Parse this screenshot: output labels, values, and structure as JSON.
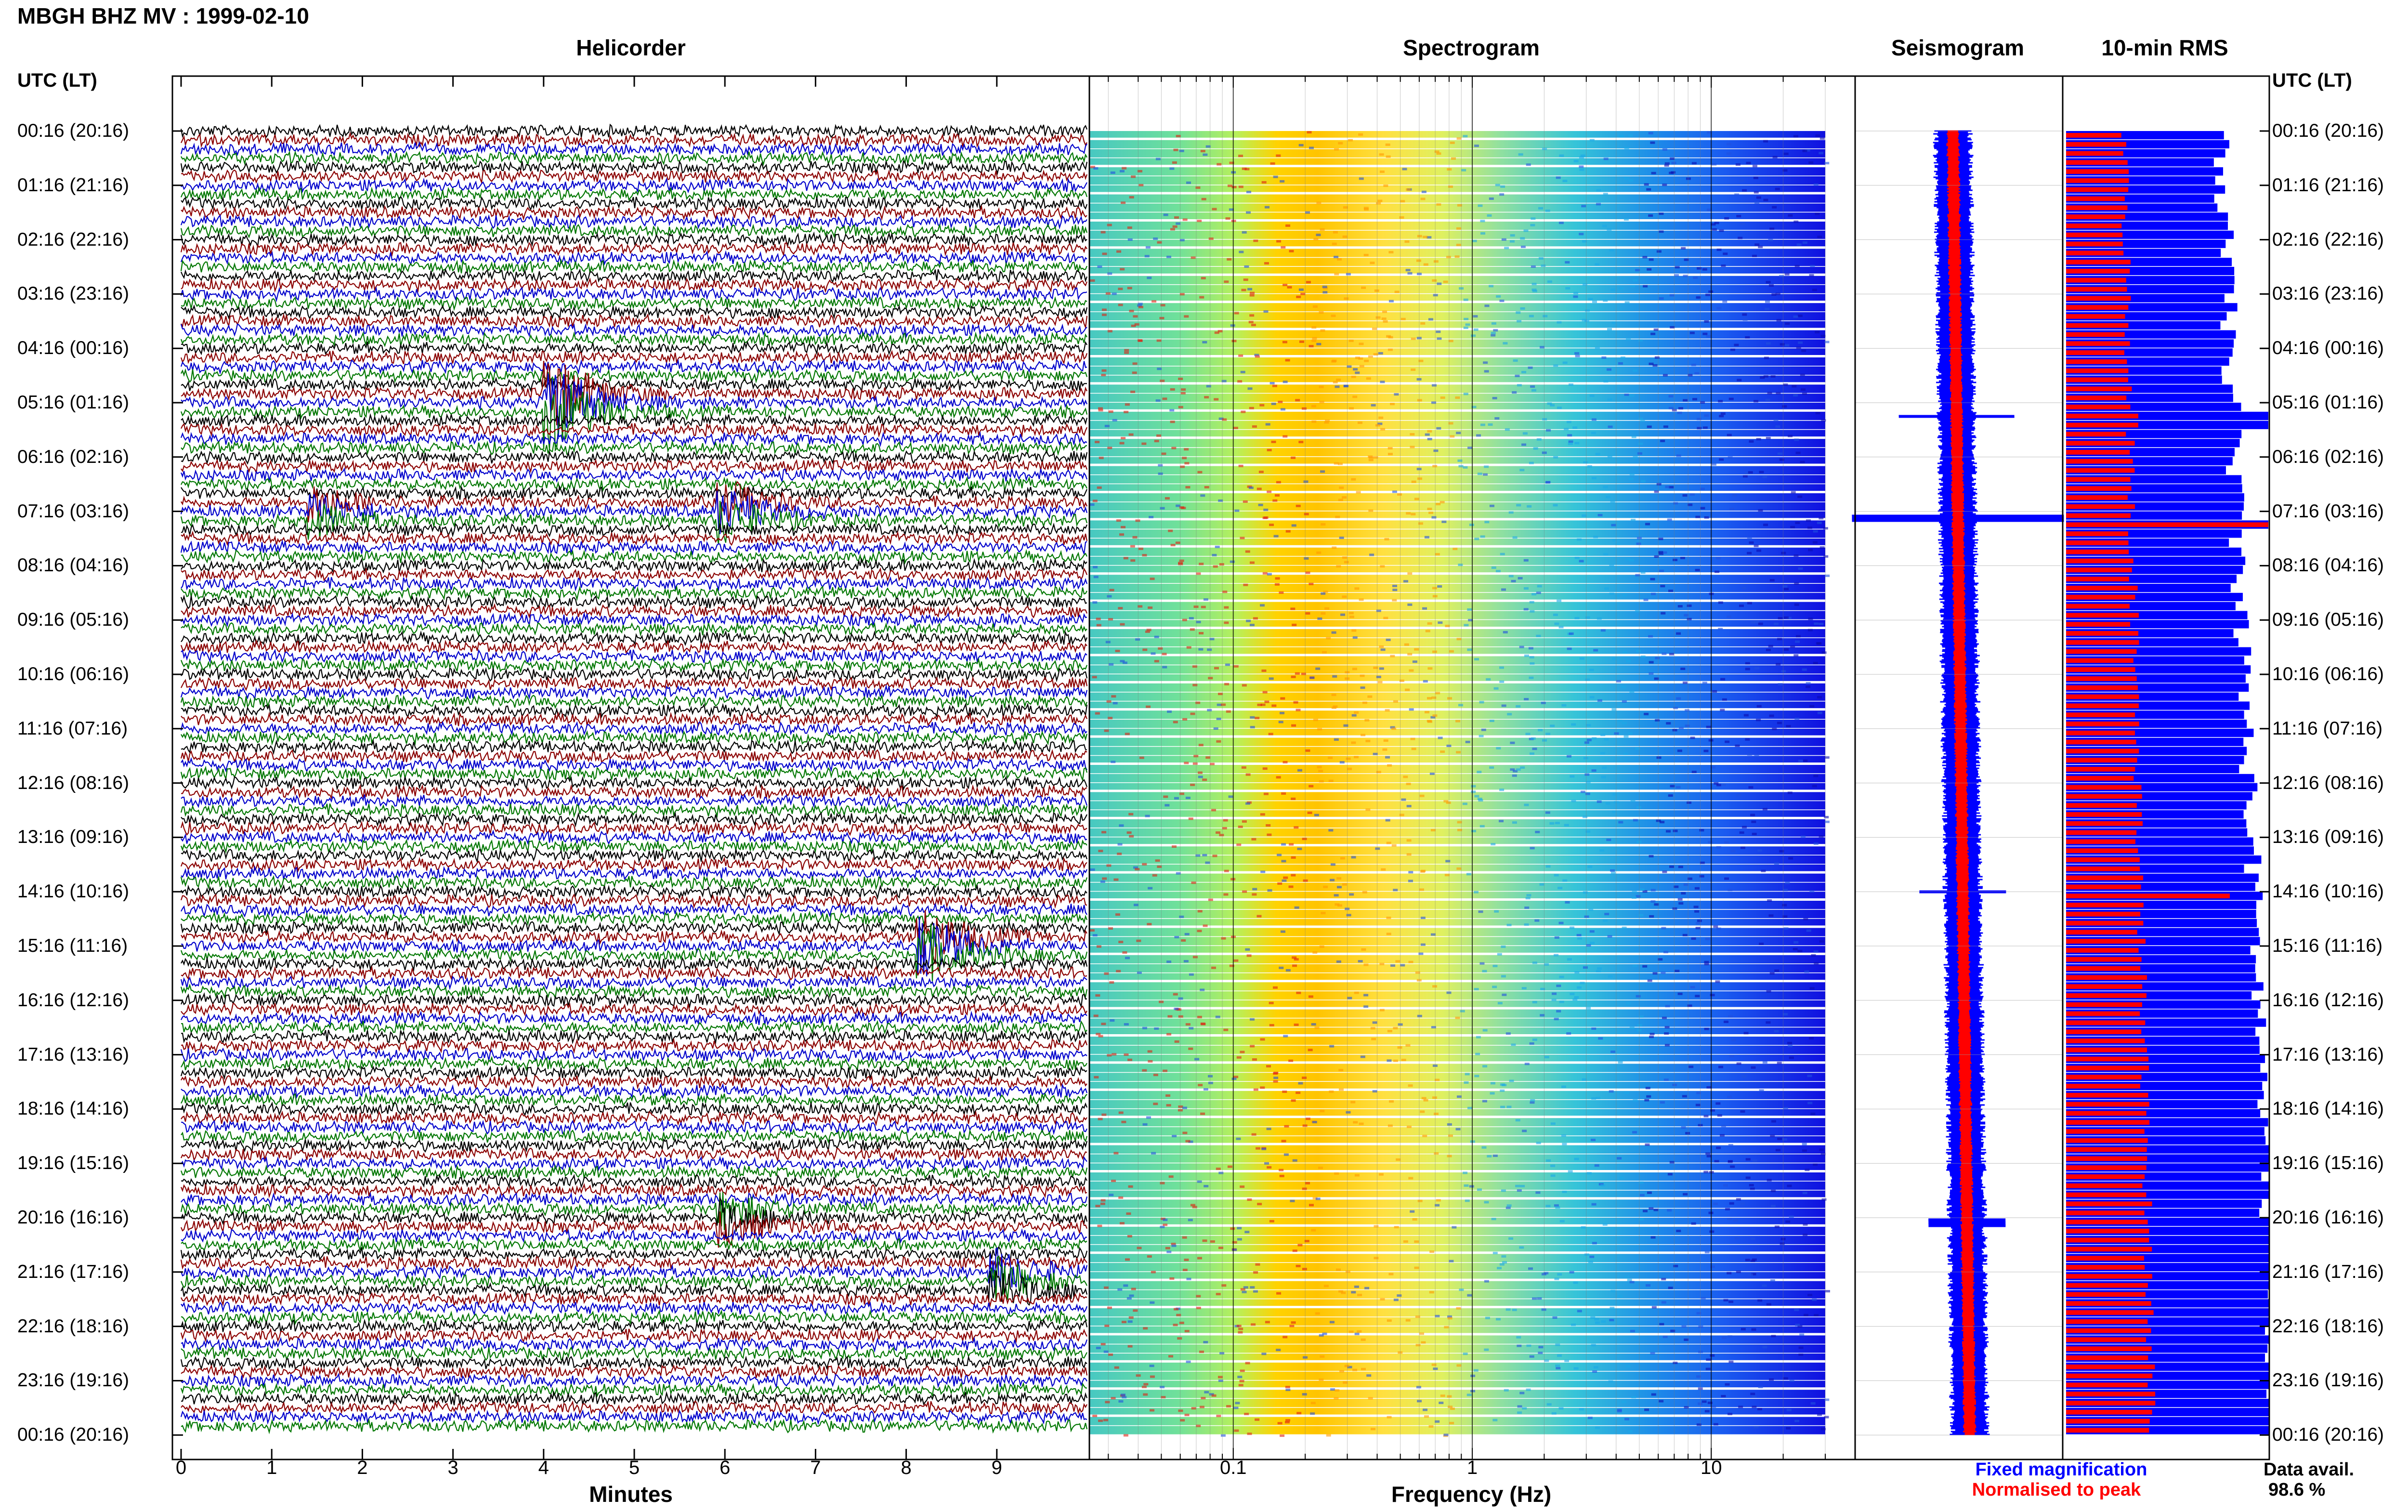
{
  "header": {
    "title": "MBGH BHZ MV : 1999-02-10"
  },
  "panels": {
    "helicorder": "Helicorder",
    "spectrogram": "Spectrogram",
    "seismogram": "Seismogram",
    "rms": "10-min RMS"
  },
  "axis": {
    "time_header": "UTC (LT)",
    "minutes_label": "Minutes",
    "frequency_label": "Frequency (Hz)"
  },
  "legend": {
    "fixed": "Fixed magnification",
    "normalised": "Normalised to peak",
    "fixed_color": "#0000ff",
    "normalised_color": "#ff0000"
  },
  "data_avail": {
    "label": "Data avail.",
    "value": "98.6 %"
  },
  "chart_data": [
    {
      "type": "line",
      "name": "helicorder",
      "title": "Helicorder",
      "xlabel": "Minutes",
      "xlim": [
        0,
        10
      ],
      "x_ticks": [
        0,
        1,
        2,
        3,
        4,
        5,
        6,
        7,
        8,
        9
      ],
      "time_labels": [
        "00:16 (20:16)",
        "01:16 (21:16)",
        "02:16 (22:16)",
        "03:16 (23:16)",
        "04:16 (00:16)",
        "05:16 (01:16)",
        "06:16 (02:16)",
        "07:16 (03:16)",
        "08:16 (04:16)",
        "09:16 (05:16)",
        "10:16 (06:16)",
        "11:16 (07:16)",
        "12:16 (08:16)",
        "13:16 (09:16)",
        "14:16 (10:16)",
        "15:16 (11:16)",
        "16:16 (12:16)",
        "17:16 (13:16)",
        "18:16 (14:16)",
        "19:16 (15:16)",
        "20:16 (16:16)",
        "21:16 (17:16)",
        "22:16 (18:16)",
        "23:16 (19:16)",
        "00:16 (20:16)"
      ],
      "traces_per_hour": 6,
      "trace_colors": [
        "#000000",
        "#8b0000",
        "#0000cc",
        "#007700"
      ],
      "events": [
        {
          "hour": 5.0,
          "minute": 4.1,
          "amp": 4.5
        },
        {
          "hour": 7.0,
          "minute": 1.5,
          "amp": 2.0
        },
        {
          "hour": 7.0,
          "minute": 6.0,
          "amp": 2.5
        },
        {
          "hour": 15.0,
          "minute": 8.2,
          "amp": 3.5
        },
        {
          "hour": 20.0,
          "minute": 6.0,
          "amp": 2.0
        },
        {
          "hour": 21.2,
          "minute": 9.0,
          "amp": 2.5
        }
      ]
    },
    {
      "type": "heatmap",
      "name": "spectrogram",
      "title": "Spectrogram",
      "xlabel": "Frequency (Hz)",
      "xscale": "log",
      "xlim": [
        0.025,
        40
      ],
      "x_ticks": [
        0.1,
        1,
        10
      ],
      "rows": 144
    },
    {
      "type": "line",
      "name": "seismogram",
      "title": "Seismogram",
      "series": [
        {
          "name": "Fixed magnification",
          "color": "#0000ff"
        },
        {
          "name": "Normalised to peak",
          "color": "#ff0000"
        }
      ]
    },
    {
      "type": "bar",
      "name": "rms",
      "title": "10-min RMS",
      "bins": 144,
      "series": [
        {
          "name": "Fixed magnification",
          "color": "#0000ff"
        },
        {
          "name": "Normalised to peak",
          "color": "#ff0000"
        }
      ]
    }
  ]
}
